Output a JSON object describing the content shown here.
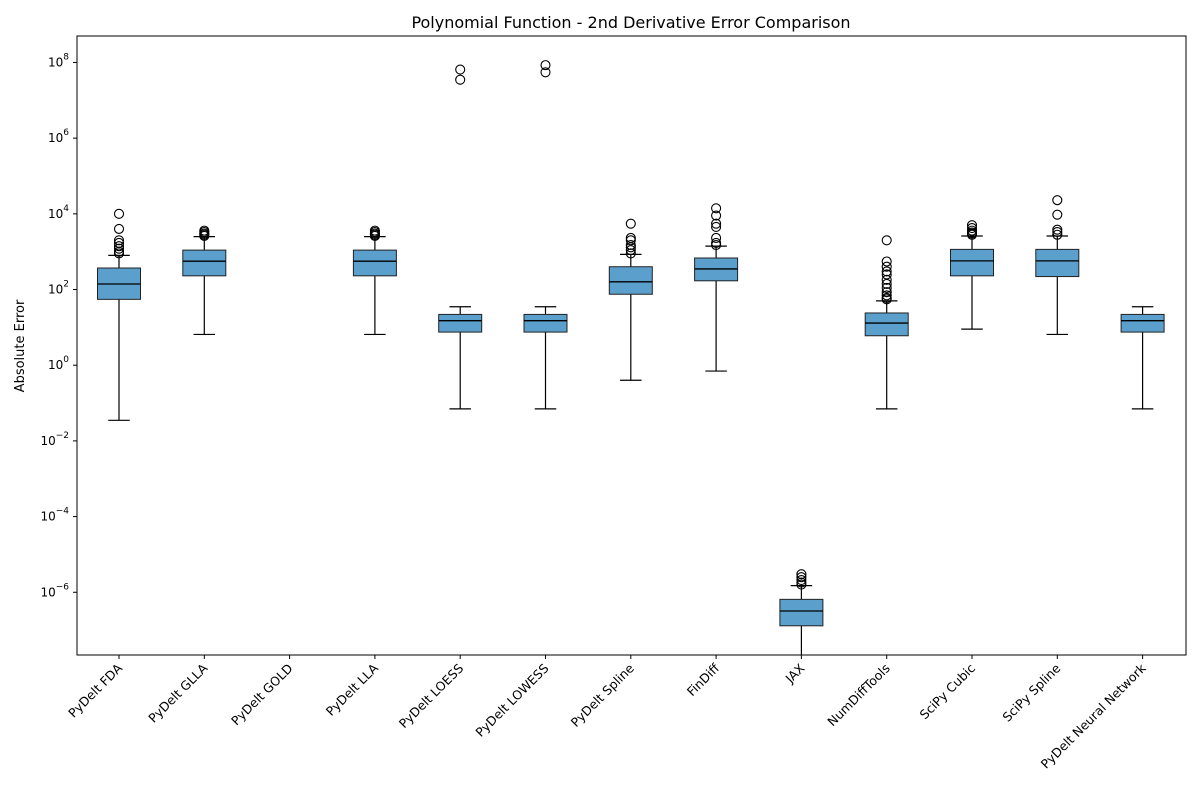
{
  "chart_data": {
    "type": "boxplot",
    "title": "Polynomial Function - 2nd Derivative Error Comparison",
    "xlabel": "",
    "ylabel": "Absolute Error",
    "y_scale": "log",
    "ylim": [
      2.2e-08,
      500000000.0
    ],
    "y_ticks": [
      {
        "base": "10",
        "exp": "8"
      },
      {
        "base": "10",
        "exp": "6"
      },
      {
        "base": "10",
        "exp": "4"
      },
      {
        "base": "10",
        "exp": "2"
      },
      {
        "base": "10",
        "exp": "0"
      },
      {
        "base": "10",
        "exp": "−2"
      },
      {
        "base": "10",
        "exp": "−4"
      },
      {
        "base": "10",
        "exp": "−6"
      }
    ],
    "grid": false,
    "box_color": "#5b9fcc",
    "categories": [
      "PyDelt FDA",
      "PyDelt GLLA",
      "PyDelt GOLD",
      "PyDelt LLA",
      "PyDelt LOESS",
      "PyDelt LOWESS",
      "PyDelt Spline",
      "FinDiff",
      "JAX",
      "NumDiffTools",
      "SciPy Cubic",
      "SciPy Spline",
      "PyDelt Neural Network"
    ],
    "boxes": [
      {
        "whislo": 0.035,
        "q1": 55,
        "med": 140,
        "q3": 370,
        "whishi": 800,
        "fliers": [
          900,
          1000,
          1200,
          1400,
          1700,
          2000,
          4000,
          10000
        ]
      },
      {
        "whislo": 6.5,
        "q1": 230,
        "med": 560,
        "q3": 1100,
        "whishi": 2500,
        "fliers": [
          2600,
          2800,
          3000,
          3300,
          3600
        ]
      },
      null,
      {
        "whislo": 6.5,
        "q1": 230,
        "med": 560,
        "q3": 1100,
        "whishi": 2500,
        "fliers": [
          2600,
          2800,
          3000,
          3300,
          3600
        ]
      },
      {
        "whislo": 0.07,
        "q1": 7.5,
        "med": 15,
        "q3": 22,
        "whishi": 35,
        "fliers": [
          35000000,
          65000000
        ]
      },
      {
        "whislo": 0.07,
        "q1": 7.5,
        "med": 15,
        "q3": 22,
        "whishi": 35,
        "fliers": [
          55000000,
          85000000
        ]
      },
      {
        "whislo": 0.4,
        "q1": 75,
        "med": 160,
        "q3": 400,
        "whishi": 850,
        "fliers": [
          900,
          1100,
          1300,
          1500,
          2000,
          2300,
          5500
        ]
      },
      {
        "whislo": 0.7,
        "q1": 170,
        "med": 350,
        "q3": 680,
        "whishi": 1400,
        "fliers": [
          1500,
          1700,
          2300,
          4500,
          5500,
          9000,
          14000
        ]
      },
      {
        "whislo": 1e-09,
        "q1": 1.3e-07,
        "med": 3.2e-07,
        "q3": 6.5e-07,
        "whishi": 1.5e-06,
        "fliers": [
          1.6e-06,
          1.8e-06,
          2.1e-06,
          2.5e-06,
          3e-06
        ]
      },
      {
        "whislo": 0.07,
        "q1": 6,
        "med": 13,
        "q3": 24,
        "whishi": 50,
        "fliers": [
          55,
          60,
          70,
          85,
          110,
          140,
          180,
          250,
          300,
          400,
          550,
          2000
        ]
      },
      {
        "whislo": 9,
        "q1": 230,
        "med": 570,
        "q3": 1150,
        "whishi": 2600,
        "fliers": [
          2800,
          3000,
          3200,
          3600,
          4200,
          5000
        ]
      },
      {
        "whislo": 6.5,
        "q1": 220,
        "med": 570,
        "q3": 1150,
        "whishi": 2600,
        "fliers": [
          2800,
          3300,
          3800,
          9500,
          23000
        ]
      },
      {
        "whislo": 0.07,
        "q1": 7.5,
        "med": 15,
        "q3": 22,
        "whishi": 35,
        "fliers": []
      }
    ]
  }
}
